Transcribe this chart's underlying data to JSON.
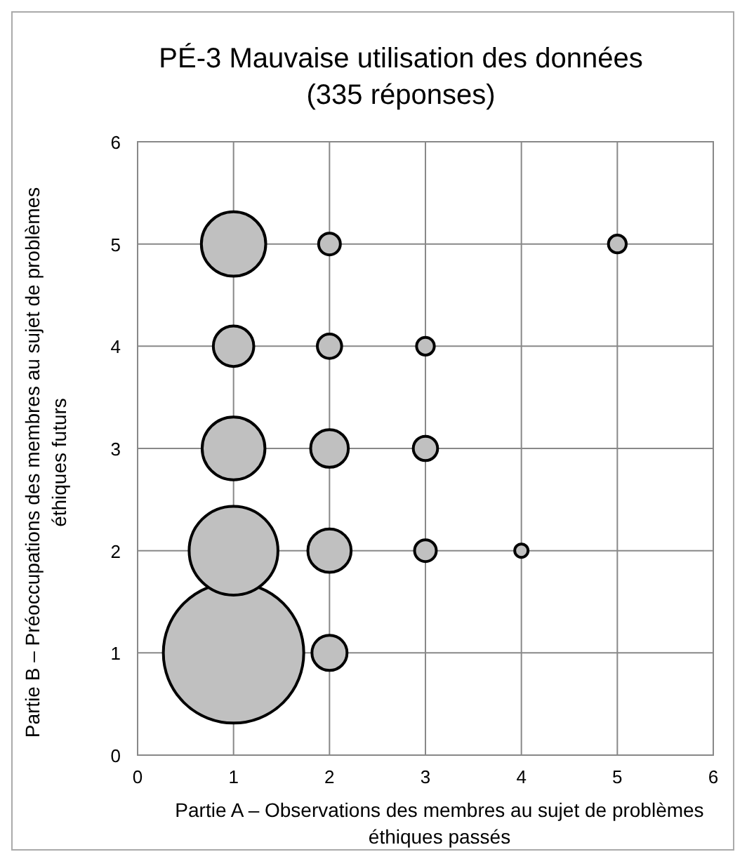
{
  "chart_data": {
    "type": "bubble",
    "title": "PÉ-3 Mauvaise utilisation des données",
    "subtitle": "(335 réponses)",
    "xlabel": "Partie A – Observations des membres au sujet de problèmes éthiques passés",
    "ylabel": "Partie B – Préoccupations des membres au sujet de problèmes éthiques futurs",
    "x": [
      1,
      1,
      1,
      1,
      1,
      2,
      2,
      2,
      2,
      2,
      3,
      3,
      3,
      4,
      5
    ],
    "values": [
      1,
      2,
      3,
      4,
      5,
      1,
      2,
      3,
      4,
      5,
      2,
      3,
      4,
      2,
      5
    ],
    "sizes": [
      1,
      0.4,
      0.2,
      0.083,
      0.21,
      0.0625,
      0.095,
      0.072,
      0.03,
      0.024,
      0.024,
      0.03,
      0.016,
      0.009,
      0.016
    ],
    "color": "#c0c0c0",
    "xlim": [
      0,
      6
    ],
    "ylim": [
      0,
      6
    ],
    "xticks": [
      0,
      1,
      2,
      3,
      4,
      5,
      6
    ],
    "yticks": [
      0,
      1,
      2,
      3,
      4,
      5,
      6
    ],
    "grid": true
  }
}
